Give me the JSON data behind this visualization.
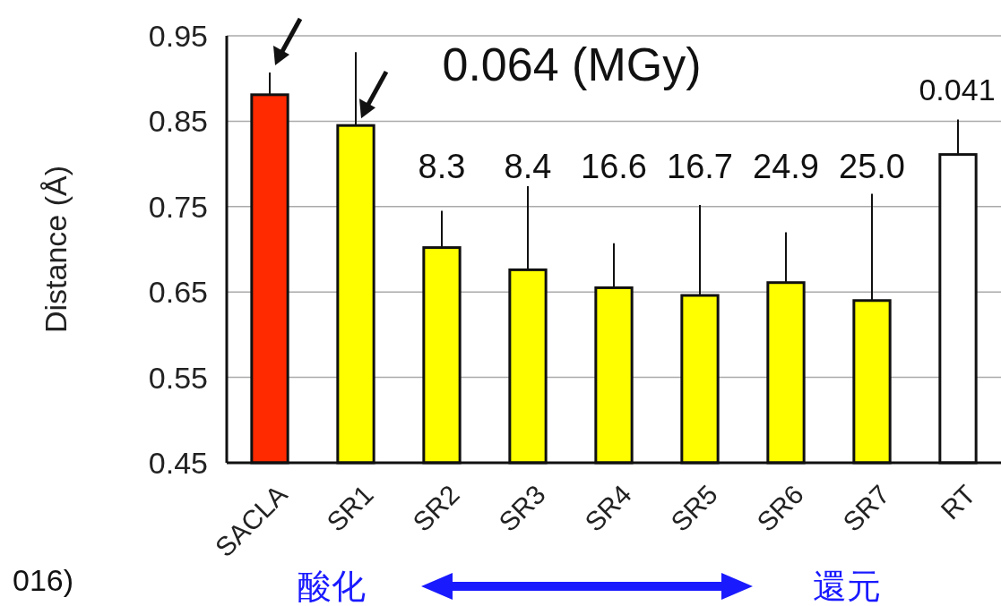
{
  "chart_data": {
    "type": "bar",
    "ylabel": "Distance (Å)",
    "categories": [
      "SACLA",
      "SR1",
      "SR2",
      "SR3",
      "SR4",
      "SR5",
      "SR6",
      "SR7",
      "RT"
    ],
    "values": [
      0.881,
      0.845,
      0.702,
      0.676,
      0.655,
      0.646,
      0.661,
      0.64,
      0.811
    ],
    "colors": [
      "#ff2a00",
      "#ffff00",
      "#ffff00",
      "#ffff00",
      "#ffff00",
      "#ffff00",
      "#ffff00",
      "#ffff00",
      "#ffffff"
    ],
    "errors": [
      [
        0.881,
        0.907
      ],
      [
        0.845,
        0.931
      ],
      [
        0.702,
        0.745
      ],
      [
        0.676,
        0.774
      ],
      [
        0.655,
        0.707
      ],
      [
        0.646,
        0.752
      ],
      [
        0.661,
        0.72
      ],
      [
        0.64,
        0.765
      ],
      [
        0.811,
        0.852
      ]
    ],
    "ylim": [
      0.45,
      0.95
    ],
    "yticks": [
      0.45,
      0.55,
      0.65,
      0.75,
      0.85,
      0.95
    ],
    "grid": "y",
    "annotations": [
      "0.064 (MGy)",
      "8.3",
      "8.4",
      "16.6",
      "16.7",
      "24.9",
      "25.0",
      "0.041",
      "酸化",
      "還元",
      "016)"
    ]
  }
}
